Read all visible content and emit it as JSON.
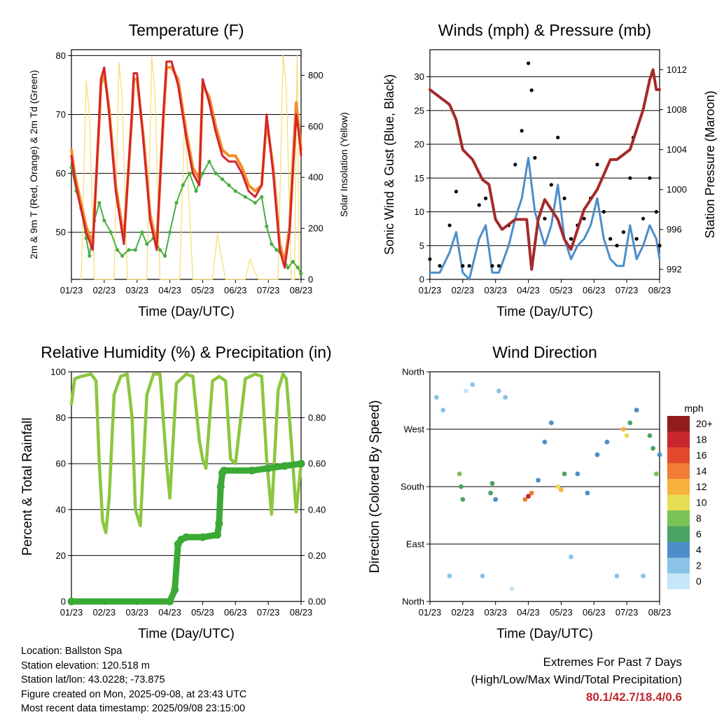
{
  "colors": {
    "temp_2m": "#d4242a",
    "temp_9m": "#f28e2b",
    "dewpoint": "#4aad44",
    "solar": "#f5dc6e",
    "wind_speed": "#4d8ec9",
    "gust": "#000000",
    "pressure": "#a52a2a",
    "humidity": "#8dc63f",
    "rain": "#3aaa35",
    "extremes": "#c0272d"
  },
  "info": {
    "location": "Location: Ballston Spa",
    "elevation": "Station elevation: 120.518 m",
    "latlon": "Station lat/lon: 43.0228; -73.875",
    "created": "Figure created on Mon, 2025-09-08, at 23:43 UTC",
    "latest": "Most recent data timestamp: 2025/09/08 23:15:00"
  },
  "extremes": {
    "title": "Extremes For Past 7 Days",
    "subtitle": "(High/Low/Max Wind/Total Precipitation)",
    "values": "80.1/42.7/18.4/0.6"
  },
  "chart_data": [
    {
      "type": "line",
      "title": "Temperature (F)",
      "xlabel": "Time (Day/UTC)",
      "ylabel": "2m & 9m T (Red, Orange) & 2m Td (Green)",
      "y2label": "Solar Insolation (Yellow)",
      "xticks": [
        "01/23",
        "02/23",
        "03/23",
        "04/23",
        "05/23",
        "06/23",
        "07/23",
        "08/23"
      ],
      "xlim": [
        0,
        7
      ],
      "ylim": [
        42,
        81
      ],
      "yticks": [
        50,
        60,
        70,
        80
      ],
      "y2lim": [
        0,
        900
      ],
      "y2ticks": [
        0,
        200,
        400,
        600,
        800
      ],
      "grid": true,
      "series": [
        {
          "name": "2m T",
          "axis": "left",
          "x": [
            0,
            0.1,
            0.25,
            0.45,
            0.65,
            0.85,
            0.9,
            1.0,
            1.15,
            1.35,
            1.6,
            1.85,
            1.9,
            2.0,
            2.2,
            2.4,
            2.6,
            2.8,
            2.9,
            3.05,
            3.25,
            3.5,
            3.7,
            3.9,
            4.0,
            4.2,
            4.4,
            4.6,
            4.8,
            5.0,
            5.2,
            5.4,
            5.6,
            5.8,
            5.95,
            6.15,
            6.35,
            6.5,
            6.65,
            6.75,
            6.85,
            6.95,
            7.0
          ],
          "y": [
            63,
            59,
            55,
            50,
            47,
            70,
            76,
            78,
            70,
            57,
            48,
            71,
            77,
            77,
            65,
            52,
            47,
            70,
            79,
            79,
            75,
            66,
            60,
            58,
            76,
            72,
            67,
            63,
            62,
            62,
            60,
            57,
            56,
            58,
            70,
            60,
            47,
            44,
            50,
            60,
            70,
            66,
            63
          ]
        },
        {
          "name": "9m T",
          "axis": "left",
          "x": [
            0,
            0.1,
            0.25,
            0.45,
            0.65,
            0.85,
            0.9,
            1.0,
            1.15,
            1.35,
            1.6,
            1.85,
            1.9,
            2.0,
            2.2,
            2.4,
            2.6,
            2.8,
            2.9,
            3.05,
            3.25,
            3.5,
            3.7,
            3.9,
            4.0,
            4.2,
            4.4,
            4.6,
            4.8,
            5.0,
            5.2,
            5.4,
            5.6,
            5.8,
            5.95,
            6.15,
            6.35,
            6.5,
            6.65,
            6.75,
            6.85,
            6.95,
            7.0
          ],
          "y": [
            64,
            60,
            56,
            51,
            48,
            69,
            75,
            77,
            71,
            58,
            49,
            70,
            76,
            76,
            66,
            53,
            48,
            69,
            78,
            78,
            76,
            67,
            61,
            59,
            75,
            73,
            68,
            64,
            63,
            63,
            61,
            58,
            57,
            58,
            69,
            61,
            48,
            45,
            51,
            62,
            72,
            67,
            64
          ]
        },
        {
          "name": "2m Td",
          "axis": "left",
          "x": [
            0,
            0.15,
            0.3,
            0.45,
            0.55,
            0.7,
            0.85,
            1.0,
            1.2,
            1.4,
            1.55,
            1.75,
            1.95,
            2.15,
            2.3,
            2.5,
            2.7,
            2.85,
            3.0,
            3.2,
            3.4,
            3.6,
            3.8,
            4.0,
            4.2,
            4.4,
            4.6,
            4.8,
            5.0,
            5.3,
            5.6,
            5.8,
            5.95,
            6.1,
            6.25,
            6.45,
            6.6,
            6.75,
            6.9,
            7.0
          ],
          "y": [
            61,
            57,
            54,
            49,
            46,
            52,
            55,
            52,
            50,
            47,
            46,
            47,
            47,
            50,
            48,
            49,
            47,
            46,
            50,
            55,
            58,
            60,
            57,
            60,
            62,
            60,
            59,
            58,
            57,
            56,
            55,
            56,
            51,
            48,
            47,
            46,
            44,
            45,
            44,
            43
          ]
        },
        {
          "name": "Solar Insolation",
          "axis": "right",
          "x": [
            0.3,
            0.45,
            0.55,
            0.7,
            1.3,
            1.45,
            1.55,
            1.7,
            2.3,
            2.45,
            2.55,
            2.7,
            3.3,
            3.45,
            3.55,
            3.7,
            4.3,
            4.45,
            4.55,
            4.7,
            5.3,
            5.45,
            5.55,
            5.7,
            6.3,
            6.45,
            6.55,
            6.7,
            6.8,
            6.88,
            6.95
          ],
          "y": [
            0,
            780,
            650,
            0,
            0,
            850,
            700,
            0,
            0,
            870,
            720,
            0,
            0,
            620,
            400,
            0,
            0,
            180,
            100,
            0,
            0,
            80,
            40,
            0,
            0,
            880,
            750,
            0,
            0,
            880,
            0
          ]
        }
      ]
    },
    {
      "type": "line",
      "title": "Winds (mph) & Pressure (mb)",
      "xlabel": "Time (Day/UTC)",
      "ylabel": "Sonic Wind & Gust (Blue, Black)",
      "y2label": "Station Pressure (Maroon)",
      "xticks": [
        "01/23",
        "02/23",
        "03/23",
        "04/23",
        "05/23",
        "06/23",
        "07/23",
        "08/23"
      ],
      "xlim": [
        0,
        7
      ],
      "ylim": [
        0,
        34
      ],
      "yticks": [
        0,
        5,
        10,
        15,
        20,
        25,
        30
      ],
      "y2lim": [
        991,
        1014
      ],
      "y2ticks": [
        992,
        996,
        1000,
        1004,
        1008,
        1012
      ],
      "grid": true,
      "series": [
        {
          "name": "Sonic Wind",
          "axis": "left",
          "x": [
            0,
            0.3,
            0.6,
            0.8,
            1.0,
            1.2,
            1.5,
            1.7,
            1.9,
            2.1,
            2.4,
            2.6,
            2.8,
            3.0,
            3.2,
            3.5,
            3.7,
            3.9,
            4.1,
            4.3,
            4.5,
            4.7,
            4.9,
            5.1,
            5.3,
            5.5,
            5.7,
            5.9,
            6.1,
            6.3,
            6.5,
            6.7,
            6.9,
            7.0
          ],
          "y": [
            1,
            1,
            4,
            7,
            1,
            0,
            6,
            8,
            1,
            1,
            5,
            9,
            12,
            18,
            10,
            5,
            8,
            14,
            6,
            3,
            5,
            6,
            8,
            12,
            6,
            3,
            2,
            2,
            8,
            3,
            5,
            8,
            6,
            3
          ]
        },
        {
          "name": "Gust",
          "axis": "left",
          "x": [
            0,
            0.3,
            0.6,
            0.8,
            1.0,
            1.2,
            1.5,
            1.7,
            1.9,
            2.1,
            2.4,
            2.6,
            2.8,
            3.0,
            3.1,
            3.2,
            3.5,
            3.7,
            3.9,
            4.1,
            4.3,
            4.5,
            4.7,
            4.9,
            5.1,
            5.3,
            5.5,
            5.7,
            5.9,
            6.1,
            6.2,
            6.3,
            6.5,
            6.7,
            6.9,
            7.0
          ],
          "y": [
            3,
            2,
            8,
            13,
            2,
            2,
            11,
            12,
            2,
            2,
            8,
            17,
            22,
            32,
            28,
            18,
            9,
            14,
            21,
            12,
            6,
            8,
            9,
            12,
            17,
            10,
            6,
            5,
            7,
            15,
            21,
            6,
            9,
            15,
            10,
            5
          ]
        },
        {
          "name": "Station Pressure",
          "axis": "right",
          "x": [
            0,
            0.2,
            0.4,
            0.6,
            0.8,
            1.0,
            1.3,
            1.6,
            1.8,
            2.0,
            2.2,
            2.4,
            2.6,
            2.8,
            2.95,
            3.1,
            3.3,
            3.5,
            3.7,
            3.9,
            4.1,
            4.3,
            4.5,
            4.7,
            4.9,
            5.1,
            5.3,
            5.5,
            5.7,
            5.9,
            6.1,
            6.3,
            6.5,
            6.7,
            6.8,
            6.9,
            7.0
          ],
          "y": [
            1010,
            1009.5,
            1009,
            1008.5,
            1007,
            1004,
            1003,
            1001,
            1000.5,
            997,
            996,
            996.5,
            997,
            997,
            997,
            992,
            997,
            999,
            998,
            997,
            995,
            994,
            996,
            998,
            999,
            1000,
            1001.5,
            1003,
            1003,
            1003.5,
            1004,
            1006,
            1008,
            1011,
            1012,
            1010,
            1010
          ]
        }
      ]
    },
    {
      "type": "line",
      "title": "Relative Humidity (%) & Precipitation (in)",
      "xlabel": "Time (Day/UTC)",
      "ylabel": "Percent & Total Rainfall",
      "xticks": [
        "01/23",
        "02/23",
        "03/23",
        "04/23",
        "05/23",
        "06/23",
        "07/23",
        "08/23"
      ],
      "xlim": [
        0,
        7
      ],
      "ylim": [
        0,
        100
      ],
      "yticks": [
        0,
        20,
        40,
        60,
        80,
        100
      ],
      "y2lim": [
        0,
        1.0
      ],
      "y2ticks": [
        "0.00",
        "0.20",
        "0.40",
        "0.60",
        "0.80"
      ],
      "grid": true,
      "series": [
        {
          "name": "Relative Humidity",
          "axis": "left",
          "x": [
            0,
            0.1,
            0.3,
            0.6,
            0.75,
            0.85,
            0.95,
            1.05,
            1.15,
            1.3,
            1.5,
            1.7,
            1.85,
            1.95,
            2.1,
            2.3,
            2.5,
            2.7,
            2.9,
            3.0,
            3.2,
            3.5,
            3.7,
            3.9,
            4.0,
            4.1,
            4.3,
            4.5,
            4.7,
            4.85,
            5.0,
            5.3,
            5.6,
            5.8,
            5.95,
            6.1,
            6.3,
            6.45,
            6.55,
            6.7,
            6.85,
            7.0
          ],
          "y": [
            86,
            97,
            98,
            99,
            96,
            60,
            35,
            30,
            45,
            90,
            98,
            99,
            80,
            40,
            33,
            90,
            99,
            99,
            60,
            45,
            95,
            99,
            98,
            70,
            62,
            58,
            96,
            98,
            96,
            62,
            60,
            97,
            99,
            98,
            62,
            38,
            92,
            99,
            97,
            70,
            39,
            60
          ]
        },
        {
          "name": "Total Rainfall",
          "axis": "right",
          "x": [
            0,
            3.0,
            3.15,
            3.25,
            3.35,
            3.5,
            4.0,
            4.45,
            4.5,
            4.55,
            4.6,
            4.65,
            5.5,
            6.0,
            6.5,
            7.0
          ],
          "y": [
            0.0,
            0.0,
            0.05,
            0.25,
            0.27,
            0.28,
            0.28,
            0.29,
            0.34,
            0.5,
            0.56,
            0.57,
            0.57,
            0.58,
            0.59,
            0.6
          ]
        }
      ]
    },
    {
      "type": "scatter",
      "title": "Wind Direction",
      "xlabel": "Time (Day/UTC)",
      "ylabel": "Direction (Colored By Speed)",
      "xticks": [
        "01/23",
        "02/23",
        "03/23",
        "04/23",
        "05/23",
        "06/23",
        "07/23",
        "08/23"
      ],
      "xlim": [
        0,
        7
      ],
      "ylim": [
        0,
        360
      ],
      "yticks": [
        "North",
        "East",
        "South",
        "West",
        "North"
      ],
      "grid": true,
      "colorbar": {
        "title": "mph",
        "labels": [
          "0",
          "2",
          "4",
          "6",
          "8",
          "10",
          "12",
          "14",
          "16",
          "18",
          "20+"
        ],
        "colors": [
          "#c6e6f7",
          "#8cc3e8",
          "#4d8ec9",
          "#4aa463",
          "#7cc355",
          "#e6dd55",
          "#f6b23c",
          "#f07d33",
          "#e4492b",
          "#c9272d",
          "#921b1e"
        ]
      },
      "points": [
        {
          "x": 0.2,
          "y": 320,
          "speed": 1
        },
        {
          "x": 0.4,
          "y": 300,
          "speed": 1
        },
        {
          "x": 0.6,
          "y": 40,
          "speed": 1
        },
        {
          "x": 0.9,
          "y": 200,
          "speed": 7
        },
        {
          "x": 0.95,
          "y": 180,
          "speed": 6
        },
        {
          "x": 1.0,
          "y": 160,
          "speed": 5
        },
        {
          "x": 1.1,
          "y": 330,
          "speed": 0
        },
        {
          "x": 1.3,
          "y": 340,
          "speed": 1
        },
        {
          "x": 1.6,
          "y": 40,
          "speed": 1
        },
        {
          "x": 1.85,
          "y": 170,
          "speed": 6
        },
        {
          "x": 1.9,
          "y": 185,
          "speed": 5
        },
        {
          "x": 2.0,
          "y": 160,
          "speed": 4
        },
        {
          "x": 2.1,
          "y": 330,
          "speed": 1
        },
        {
          "x": 2.3,
          "y": 320,
          "speed": 1
        },
        {
          "x": 2.5,
          "y": 20,
          "speed": 0
        },
        {
          "x": 2.9,
          "y": 160,
          "speed": 14
        },
        {
          "x": 3.0,
          "y": 165,
          "speed": 17
        },
        {
          "x": 3.1,
          "y": 170,
          "speed": 13
        },
        {
          "x": 3.3,
          "y": 190,
          "speed": 4
        },
        {
          "x": 3.5,
          "y": 250,
          "speed": 4
        },
        {
          "x": 3.7,
          "y": 280,
          "speed": 3
        },
        {
          "x": 3.9,
          "y": 180,
          "speed": 10
        },
        {
          "x": 4.0,
          "y": 175,
          "speed": 12
        },
        {
          "x": 4.1,
          "y": 200,
          "speed": 6
        },
        {
          "x": 4.3,
          "y": 70,
          "speed": 2
        },
        {
          "x": 4.5,
          "y": 200,
          "speed": 4
        },
        {
          "x": 4.8,
          "y": 170,
          "speed": 3
        },
        {
          "x": 5.1,
          "y": 230,
          "speed": 3
        },
        {
          "x": 5.4,
          "y": 250,
          "speed": 3
        },
        {
          "x": 5.7,
          "y": 40,
          "speed": 2
        },
        {
          "x": 5.9,
          "y": 270,
          "speed": 11
        },
        {
          "x": 6.0,
          "y": 260,
          "speed": 9
        },
        {
          "x": 6.1,
          "y": 280,
          "speed": 6
        },
        {
          "x": 6.3,
          "y": 300,
          "speed": 3
        },
        {
          "x": 6.5,
          "y": 40,
          "speed": 2
        },
        {
          "x": 6.7,
          "y": 260,
          "speed": 6
        },
        {
          "x": 6.8,
          "y": 240,
          "speed": 5
        },
        {
          "x": 6.9,
          "y": 200,
          "speed": 7
        },
        {
          "x": 7.0,
          "y": 230,
          "speed": 4
        }
      ]
    }
  ]
}
